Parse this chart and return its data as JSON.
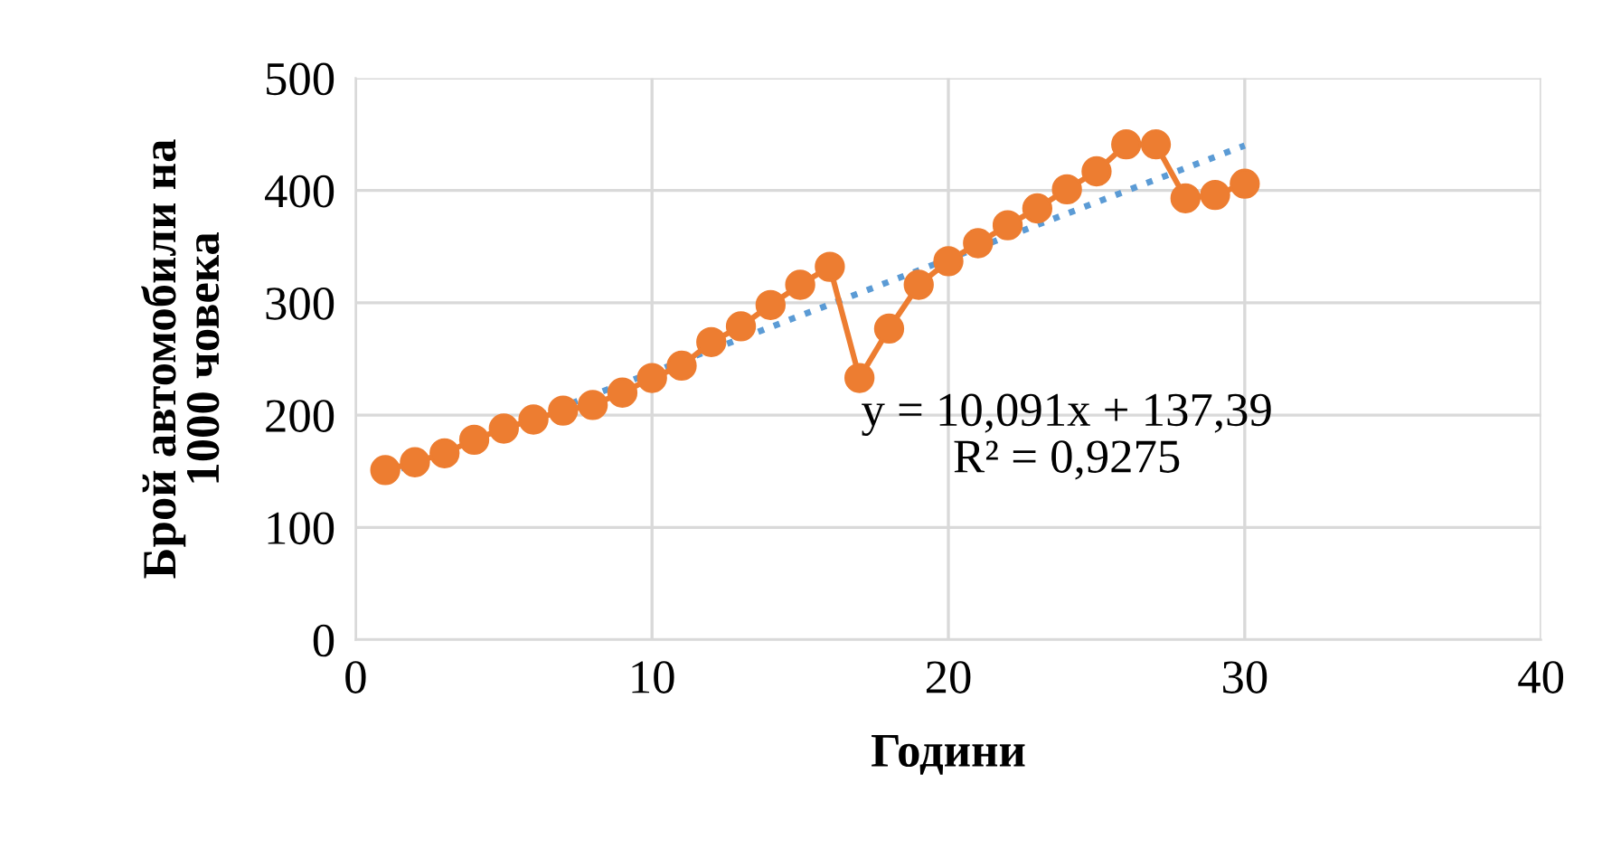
{
  "chart_data": {
    "type": "line",
    "xlabel": "Години",
    "ylabel": "Брой автомобили на\n1000 човека",
    "xlim": [
      0,
      40
    ],
    "xticks": [
      0,
      10,
      20,
      30,
      40
    ],
    "ylim": [
      0,
      500
    ],
    "yticks": [
      0,
      100,
      200,
      300,
      400,
      500
    ],
    "grid": true,
    "series": [
      {
        "color": "#ed7d31",
        "marker": "circle",
        "line_style": "solid",
        "x": [
          1,
          2,
          3,
          4,
          5,
          6,
          7,
          8,
          9,
          10,
          11,
          12,
          13,
          14,
          15,
          16,
          17,
          18,
          19,
          20,
          21,
          22,
          23,
          24,
          25,
          26,
          27,
          28,
          29,
          30
        ],
        "values": [
          151,
          158,
          166,
          178,
          188,
          196,
          204,
          209,
          220,
          233,
          244,
          265,
          279,
          298,
          316,
          332,
          233,
          277,
          316,
          337,
          353,
          369,
          384,
          401,
          417,
          441,
          441,
          393,
          396,
          406
        ]
      },
      {
        "color": "#5b9bd5",
        "marker": "none",
        "line_style": "dotted",
        "x": [
          1,
          30
        ],
        "values": [
          147,
          440
        ]
      }
    ],
    "annotations": [
      "y = 10,091x + 137,39\nR² = 0,9275"
    ]
  }
}
